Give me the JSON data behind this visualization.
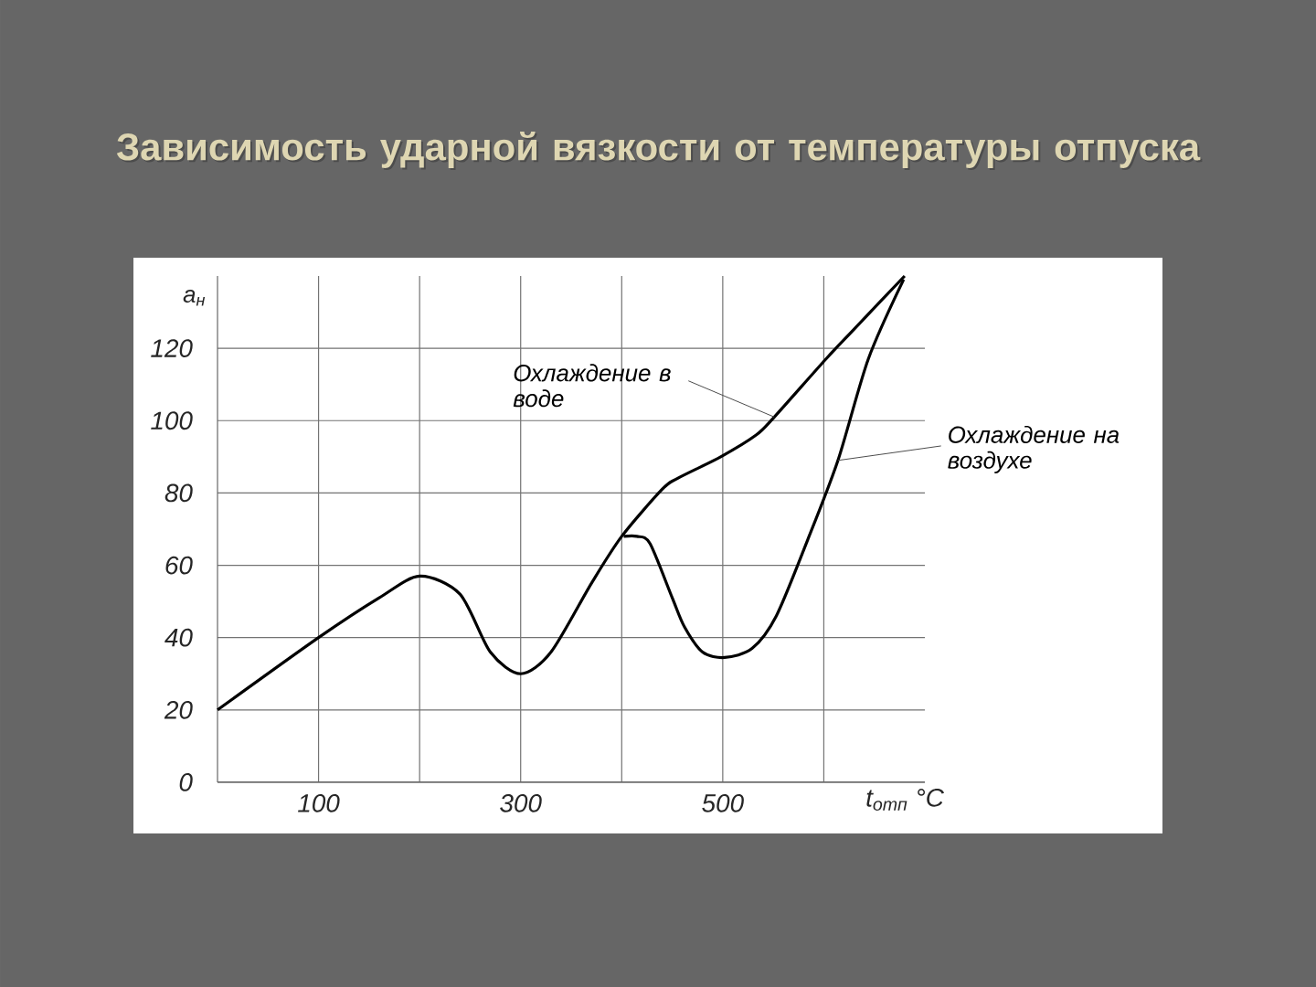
{
  "chart_data": {
    "type": "line",
    "title": "Зависимость ударной вязкости от температуры отпуска",
    "xlabel": "t$_{отп}$ °C",
    "ylabel": "a$_{н}$",
    "xlim": [
      0,
      700
    ],
    "ylim": [
      0,
      140
    ],
    "xticks": [
      {
        "value": 100,
        "label": "100"
      },
      {
        "value": 200,
        "label": null
      },
      {
        "value": 300,
        "label": "300"
      },
      {
        "value": 400,
        "label": null
      },
      {
        "value": 500,
        "label": "500"
      },
      {
        "value": 600,
        "label": null
      }
    ],
    "yticks": [
      0,
      20,
      40,
      60,
      80,
      100,
      120
    ],
    "grid": true,
    "marker": "none",
    "line_style": "solid",
    "series": [
      {
        "color": "#000000",
        "x": [
          0,
          100,
          160,
          200,
          240,
          270,
          300,
          330,
          370,
          400,
          440,
          455,
          498,
          533,
          551,
          602,
          629,
          680
        ],
        "values": [
          20,
          40,
          51,
          57,
          52,
          36,
          30,
          36,
          55,
          68,
          81,
          84,
          90,
          96,
          101,
          117,
          125,
          140
        ]
      },
      {
        "color": "#000000",
        "x": [
          402,
          415,
          428,
          450,
          462,
          480,
          502,
          529,
          553,
          584,
          614,
          644,
          679
        ],
        "values": [
          68,
          68,
          66,
          51,
          43,
          36,
          34.5,
          37,
          46,
          67,
          89,
          117,
          139
        ]
      }
    ],
    "annotations": [
      {
        "text": "Охлаждение в воде",
        "x": 551,
        "y": 101
      },
      {
        "text": "Охлаждение на воздухе",
        "x": 614,
        "y": 89
      }
    ]
  }
}
